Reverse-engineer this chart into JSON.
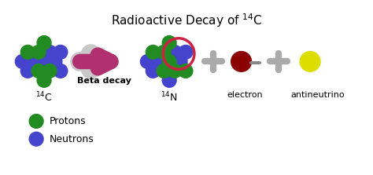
{
  "title": "Radioactive Decay of $^{14}$C",
  "title_fontsize": 11,
  "bg_color": "#ffffff",
  "c14_label": "$^{14}$C",
  "n14_label": "$^{14}$N",
  "electron_label": "electron",
  "antineutrino_label": "antineutrino",
  "beta_decay_label": "Beta decay",
  "proton_color": "#228B22",
  "neutron_color": "#4444CC",
  "electron_color": "#8B0000",
  "antineutrino_color": "#DDDD00",
  "arrow_fill": "#B03070",
  "arrow_edge": "#C8C8C8",
  "plus_color": "#999999",
  "minus_color": "#888888",
  "ring_color": "#CC2244",
  "legend_proton_label": "Protons",
  "legend_neutron_label": "Neutrons",
  "label_fontsize": 9,
  "legend_fontsize": 9
}
